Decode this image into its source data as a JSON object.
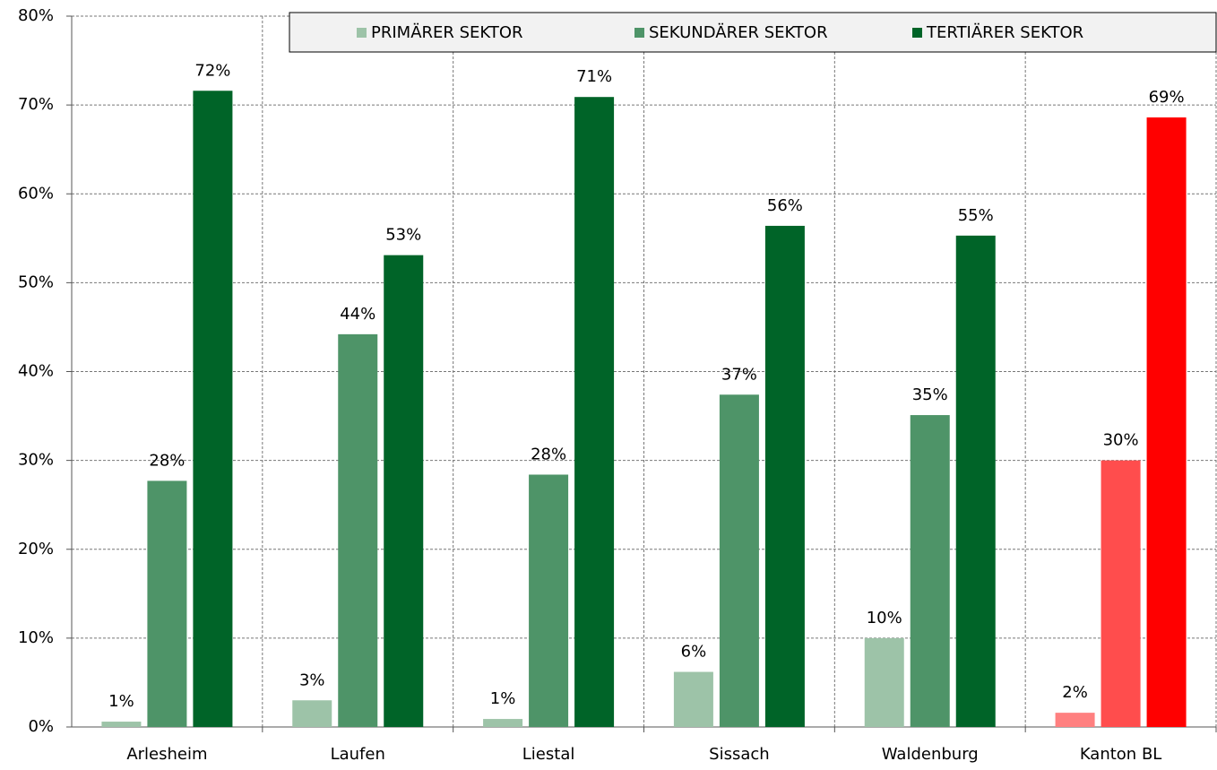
{
  "chart_data": {
    "type": "bar",
    "categories": [
      "Arlesheim",
      "Laufen",
      "Liestal",
      "Sissach",
      "Waldenburg",
      "Kanton BL"
    ],
    "series": [
      {
        "name": "PRIMÄRER SEKTOR",
        "color": "#9dc3a8",
        "colors": [
          "#9dc3a8",
          "#9dc3a8",
          "#9dc3a8",
          "#9dc3a8",
          "#9dc3a8",
          "#ff8080"
        ],
        "values": [
          0.6,
          3.0,
          0.9,
          6.2,
          10.0,
          1.6
        ],
        "value_labels": [
          "1%",
          "3%",
          "1%",
          "6%",
          "10%",
          "2%"
        ]
      },
      {
        "name": "SEKUNDÄRER SEKTOR",
        "color": "#4e9468",
        "colors": [
          "#4e9468",
          "#4e9468",
          "#4e9468",
          "#4e9468",
          "#4e9468",
          "#ff4d4d"
        ],
        "values": [
          27.7,
          44.2,
          28.4,
          37.4,
          35.1,
          30.0
        ],
        "value_labels": [
          "28%",
          "44%",
          "28%",
          "37%",
          "35%",
          "30%"
        ]
      },
      {
        "name": "TERTIÄRER SEKTOR",
        "color": "#006428",
        "colors": [
          "#006428",
          "#006428",
          "#006428",
          "#006428",
          "#006428",
          "#ff0000"
        ],
        "values": [
          71.6,
          53.1,
          70.9,
          56.4,
          55.3,
          68.6
        ],
        "value_labels": [
          "72%",
          "53%",
          "71%",
          "56%",
          "55%",
          "69%"
        ]
      }
    ],
    "ylim": [
      0,
      80
    ],
    "yticks": [
      {
        "value": 0,
        "label": "0%"
      },
      {
        "value": 10,
        "label": "10%"
      },
      {
        "value": 20,
        "label": "20%"
      },
      {
        "value": 30,
        "label": "30%"
      },
      {
        "value": 40,
        "label": "40%"
      },
      {
        "value": 50,
        "label": "50%"
      },
      {
        "value": 60,
        "label": "60%"
      },
      {
        "value": 70,
        "label": "70%"
      },
      {
        "value": 80,
        "label": "80%"
      }
    ],
    "grid": true,
    "legend": "top"
  }
}
